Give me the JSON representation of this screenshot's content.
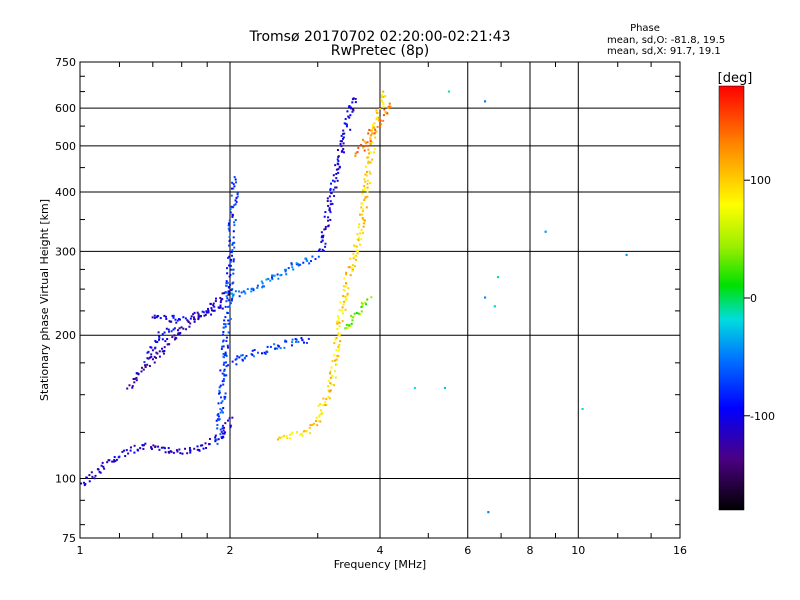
{
  "chart_data": {
    "type": "scatter",
    "title": "Tromsø 20170702 02:20:00-02:21:43",
    "subtitle": "RwPretec (8p)",
    "xlabel": "Frequency [MHz]",
    "ylabel": "Stationary phase Virtual Height [km]",
    "x_scale": "log",
    "y_scale": "log",
    "xlim": [
      1,
      16
    ],
    "ylim": [
      75,
      750
    ],
    "x_ticks": [
      1,
      2,
      4,
      6,
      8,
      10,
      16
    ],
    "y_ticks": [
      75,
      100,
      200,
      300,
      400,
      500,
      600,
      750
    ],
    "grid": true,
    "stats": {
      "heading": "Phase",
      "o_line": "mean, sd,O: -81.8, 19.5",
      "x_line": "mean, sd,X:  91.7, 19.1"
    },
    "colorbar": {
      "label": "[deg]",
      "range": [
        -180,
        180
      ],
      "ticks": [
        -100,
        0,
        100
      ]
    },
    "traces": [
      {
        "name": "low-E trace",
        "segments": [
          {
            "f": [
              1.0,
              1.1,
              1.2,
              1.35,
              1.55,
              1.8,
              1.95,
              2.0
            ],
            "h": [
              97,
              105,
              112,
              117,
              114,
              117,
              125,
              135
            ],
            "phase": -110
          }
        ]
      },
      {
        "name": "E to F1 sloped trace",
        "segments": [
          {
            "f": [
              1.25,
              1.4,
              1.6,
              1.8,
              1.95,
              2.0
            ],
            "h": [
              155,
              178,
              205,
              225,
              245,
              260
            ],
            "phase": -120
          }
        ]
      },
      {
        "name": "secondary low branch",
        "segments": [
          {
            "f": [
              1.35,
              1.45,
              1.55
            ],
            "h": [
              178,
              200,
              210
            ],
            "phase": -95
          }
        ]
      },
      {
        "name": "upper-left plateau",
        "segments": [
          {
            "f": [
              1.4,
              1.6,
              1.8,
              1.95
            ],
            "h": [
              218,
              216,
              222,
              232
            ],
            "phase": -100
          }
        ]
      },
      {
        "name": "vertical cusp at 2 MHz",
        "segments": [
          {
            "f": [
              1.9,
              1.95,
              2.0,
              2.02,
              2.05
            ],
            "h": [
              120,
              180,
              260,
              340,
              430
            ],
            "phase": -75
          }
        ]
      },
      {
        "name": "middle blue plateau",
        "segments": [
          {
            "f": [
              2.0,
              2.2,
              2.4,
              2.6,
              2.8,
              3.0
            ],
            "h": [
              240,
              250,
              260,
              275,
              285,
              290
            ],
            "phase": -60
          }
        ]
      },
      {
        "name": "lower sloped blue trace",
        "segments": [
          {
            "f": [
              2.0,
              2.3,
              2.6,
              2.9
            ],
            "h": [
              175,
              185,
              192,
              196
            ],
            "phase": -70
          }
        ]
      },
      {
        "name": "O-mode F2 cusp",
        "segments": [
          {
            "f": [
              3.05,
              3.15,
              3.25,
              3.35,
              3.45,
              3.55
            ],
            "h": [
              300,
              360,
              430,
              500,
              560,
              640
            ],
            "phase": -105
          }
        ]
      },
      {
        "name": "X-mode yellow trace",
        "segments": [
          {
            "f": [
              2.5,
              2.8,
              3.0,
              3.2,
              3.3,
              3.4,
              3.55,
              3.7,
              3.8,
              3.9,
              4.1
            ],
            "h": [
              122,
              124,
              132,
              160,
              200,
              250,
              290,
              360,
              450,
              560,
              650
            ],
            "phase": 95
          }
        ]
      },
      {
        "name": "X-mode orange cusp",
        "segments": [
          {
            "f": [
              3.6,
              3.8,
              4.0,
              4.2
            ],
            "h": [
              480,
              520,
              560,
              620
            ],
            "phase": 130
          }
        ]
      },
      {
        "name": "X-mode green branch",
        "segments": [
          {
            "f": [
              3.4,
              3.6,
              3.8
            ],
            "h": [
              205,
              220,
              240
            ],
            "phase": 40
          }
        ]
      },
      {
        "name": "sparse high-frequency points",
        "segments": [
          {
            "f": [
              5.5,
              6.5,
              6.6,
              6.8,
              8.6,
              10.2,
              12.5,
              6.9,
              6.5,
              5.4,
              4.7
            ],
            "h": [
              650,
              620,
              85,
              230,
              330,
              140,
              295,
              265,
              240,
              155,
              155
            ],
            "phase": -40
          }
        ]
      }
    ]
  }
}
